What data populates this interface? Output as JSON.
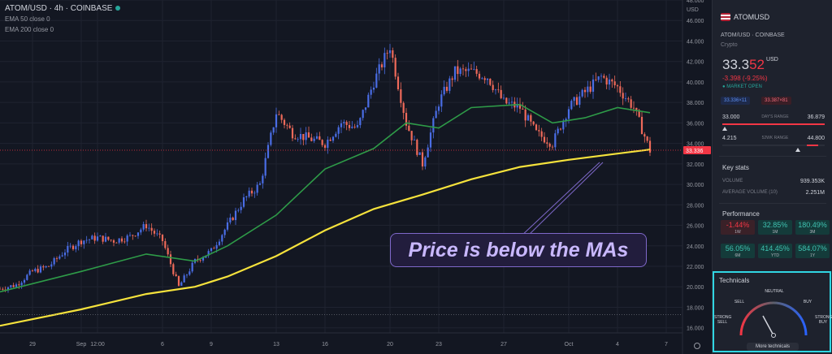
{
  "chart": {
    "symbol": "ATOM/USD · 4h · COINBASE",
    "ema50": {
      "name": "EMA 50 close 0"
    },
    "ema200": {
      "name": "EMA 200 close 0"
    },
    "currency": "USD",
    "callout": "Price is below the MAs",
    "price_tag": "33.336",
    "colors": {
      "bg": "#131722",
      "up": "#4a6de5",
      "down": "#ef6a5a",
      "ema50": "#2e9b48",
      "ema200": "#f5e23c",
      "callout": "#7e68c9"
    }
  },
  "chart_data": {
    "type": "candlestick",
    "y_ticks": [
      "48.000",
      "46.000",
      "44.000",
      "42.000",
      "40.000",
      "38.000",
      "36.000",
      "34.000",
      "32.000",
      "30.000",
      "28.000",
      "26.000",
      "24.000",
      "22.000",
      "20.000",
      "18.000",
      "16.000"
    ],
    "x_ticks": [
      "29",
      "Sep",
      "12:00",
      "6",
      "9",
      "13",
      "16",
      "20",
      "23",
      "27",
      "Oct",
      "4",
      "7"
    ],
    "ylim": [
      15.5,
      48
    ],
    "x_label_dates": [
      "2021-08-29",
      "2021-09-01",
      "2021-09-02",
      "2021-09-06",
      "2021-09-09",
      "2021-09-13",
      "2021-09-16",
      "2021-09-20",
      "2021-09-23",
      "2021-09-27",
      "2021-10-01",
      "2021-10-04",
      "2021-10-07"
    ],
    "price_series": [
      {
        "t": "2021-08-27",
        "v": 19.8
      },
      {
        "t": "2021-08-28",
        "v": 20.2
      },
      {
        "t": "2021-08-29",
        "v": 21.5
      },
      {
        "t": "2021-08-30",
        "v": 22.0
      },
      {
        "t": "2021-08-31",
        "v": 23.5
      },
      {
        "t": "2021-09-01",
        "v": 24.5
      },
      {
        "t": "2021-09-02",
        "v": 24.8
      },
      {
        "t": "2021-09-03",
        "v": 24.5
      },
      {
        "t": "2021-09-04",
        "v": 24.9
      },
      {
        "t": "2021-09-05",
        "v": 26.0
      },
      {
        "t": "2021-09-06",
        "v": 24.5
      },
      {
        "t": "2021-09-07",
        "v": 20.0
      },
      {
        "t": "2021-09-08",
        "v": 22.5
      },
      {
        "t": "2021-09-09",
        "v": 23.5
      },
      {
        "t": "2021-09-10",
        "v": 26.0
      },
      {
        "t": "2021-09-11",
        "v": 28.5
      },
      {
        "t": "2021-09-12",
        "v": 30.0
      },
      {
        "t": "2021-09-13",
        "v": 37.0
      },
      {
        "t": "2021-09-14",
        "v": 35.0
      },
      {
        "t": "2021-09-15",
        "v": 34.5
      },
      {
        "t": "2021-09-16",
        "v": 34.0
      },
      {
        "t": "2021-09-17",
        "v": 36.0
      },
      {
        "t": "2021-09-18",
        "v": 35.5
      },
      {
        "t": "2021-09-19",
        "v": 40.0
      },
      {
        "t": "2021-09-20",
        "v": 43.5
      },
      {
        "t": "2021-09-21",
        "v": 36.0
      },
      {
        "t": "2021-09-22",
        "v": 32.0
      },
      {
        "t": "2021-09-23",
        "v": 38.0
      },
      {
        "t": "2021-09-24",
        "v": 41.0
      },
      {
        "t": "2021-09-25",
        "v": 41.0
      },
      {
        "t": "2021-09-26",
        "v": 40.5
      },
      {
        "t": "2021-09-27",
        "v": 38.0
      },
      {
        "t": "2021-09-28",
        "v": 37.5
      },
      {
        "t": "2021-09-29",
        "v": 35.0
      },
      {
        "t": "2021-09-30",
        "v": 34.0
      },
      {
        "t": "2021-10-01",
        "v": 37.5
      },
      {
        "t": "2021-10-02",
        "v": 39.0
      },
      {
        "t": "2021-10-03",
        "v": 40.5
      },
      {
        "t": "2021-10-04",
        "v": 39.5
      },
      {
        "t": "2021-10-05",
        "v": 37.5
      },
      {
        "t": "2021-10-06",
        "v": 33.3
      }
    ],
    "series": [
      {
        "name": "EMA 50",
        "points": [
          {
            "t": "2021-08-27",
            "v": 19.5
          },
          {
            "t": "2021-09-01",
            "v": 21.5
          },
          {
            "t": "2021-09-05",
            "v": 23.2
          },
          {
            "t": "2021-09-08",
            "v": 22.5
          },
          {
            "t": "2021-09-10",
            "v": 24.0
          },
          {
            "t": "2021-09-13",
            "v": 27.0
          },
          {
            "t": "2021-09-16",
            "v": 31.5
          },
          {
            "t": "2021-09-19",
            "v": 33.5
          },
          {
            "t": "2021-09-21",
            "v": 36.0
          },
          {
            "t": "2021-09-23",
            "v": 35.5
          },
          {
            "t": "2021-09-25",
            "v": 37.5
          },
          {
            "t": "2021-09-28",
            "v": 37.8
          },
          {
            "t": "2021-09-30",
            "v": 36.0
          },
          {
            "t": "2021-10-02",
            "v": 36.5
          },
          {
            "t": "2021-10-04",
            "v": 37.5
          },
          {
            "t": "2021-10-06",
            "v": 37.0
          }
        ]
      },
      {
        "name": "EMA 200",
        "points": [
          {
            "t": "2021-08-27",
            "v": 16.2
          },
          {
            "t": "2021-09-01",
            "v": 17.8
          },
          {
            "t": "2021-09-05",
            "v": 19.3
          },
          {
            "t": "2021-09-08",
            "v": 20.0
          },
          {
            "t": "2021-09-10",
            "v": 21.0
          },
          {
            "t": "2021-09-13",
            "v": 23.0
          },
          {
            "t": "2021-09-16",
            "v": 25.5
          },
          {
            "t": "2021-09-19",
            "v": 27.6
          },
          {
            "t": "2021-09-22",
            "v": 29.0
          },
          {
            "t": "2021-09-25",
            "v": 30.5
          },
          {
            "t": "2021-09-28",
            "v": 31.7
          },
          {
            "t": "2021-10-01",
            "v": 32.4
          },
          {
            "t": "2021-10-04",
            "v": 33.0
          },
          {
            "t": "2021-10-06",
            "v": 33.4
          }
        ]
      }
    ]
  },
  "panel": {
    "name": "ATOMUSD",
    "exchange": "ATOM/USD · COINBASE",
    "category": "Crypto",
    "price_main": "33.3",
    "price_last": "52",
    "price_currency": "USD",
    "change": "-3.398 (-9.25%)",
    "market": "● MARKET OPEN",
    "bid": "33.336×11",
    "ask": "33.387×81",
    "days_range": {
      "low": "33.000",
      "label": "DAY'S RANGE",
      "high": "36.879"
    },
    "week52_range": {
      "low": "4.215",
      "label": "52WK RANGE",
      "high": "44.800"
    },
    "key_stats": {
      "title": "Key stats",
      "volume_label": "VOLUME",
      "volume": "939.353K",
      "avg_label": "AVERAGE VOLUME (10)",
      "avg": "2.251M"
    },
    "performance": {
      "title": "Performance",
      "items": [
        {
          "value": "-1.44%",
          "period": "1W",
          "dir": "neg"
        },
        {
          "value": "32.85%",
          "period": "1M",
          "dir": "pos"
        },
        {
          "value": "180.49%",
          "period": "3M",
          "dir": "pos"
        },
        {
          "value": "56.05%",
          "period": "6M",
          "dir": "pos"
        },
        {
          "value": "414.45%",
          "period": "YTD",
          "dir": "pos"
        },
        {
          "value": "584.07%",
          "period": "1Y",
          "dir": "pos"
        }
      ]
    },
    "technicals": {
      "title": "Technicals",
      "sell": "SELL",
      "neutral": "NEUTRAL",
      "buy": "BUY",
      "strong_sell": "STRONG SELL",
      "strong_buy": "STRONG BUY",
      "button": "More technicals"
    }
  }
}
